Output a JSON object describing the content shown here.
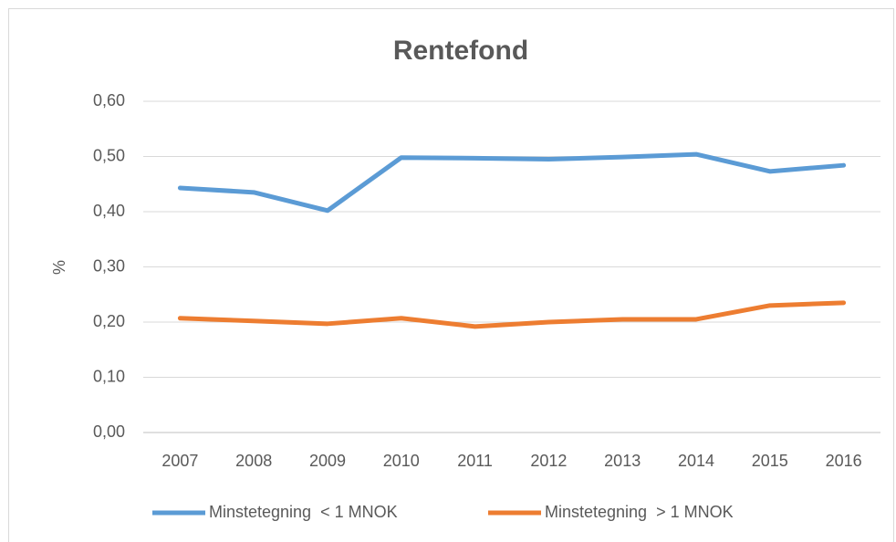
{
  "chart_data": {
    "type": "line",
    "title": "Rentefond",
    "y_label": "%",
    "categories": [
      "2007",
      "2008",
      "2009",
      "2010",
      "2011",
      "2012",
      "2013",
      "2014",
      "2015",
      "2016"
    ],
    "series": [
      {
        "name": "Minstetegning  < 1 MNOK",
        "color": "#5b9bd5",
        "values": [
          0.443,
          0.435,
          0.402,
          0.498,
          0.497,
          0.495,
          0.499,
          0.504,
          0.473,
          0.484
        ]
      },
      {
        "name": "Minstetegning  > 1 MNOK",
        "color": "#ed7d31",
        "values": [
          0.207,
          0.202,
          0.197,
          0.207,
          0.192,
          0.2,
          0.205,
          0.205,
          0.23,
          0.235
        ]
      }
    ],
    "ylim": [
      0,
      0.6
    ],
    "yticks": [
      {
        "value": 0,
        "label": "0,00"
      },
      {
        "value": 0.1,
        "label": "0,10"
      },
      {
        "value": 0.2,
        "label": "0,20"
      },
      {
        "value": 0.3,
        "label": "0,30"
      },
      {
        "value": 0.4,
        "label": "0,40"
      },
      {
        "value": 0.5,
        "label": "0,50"
      },
      {
        "value": 0.6,
        "label": "0,60"
      }
    ],
    "grid": true,
    "legend": "bottom"
  }
}
